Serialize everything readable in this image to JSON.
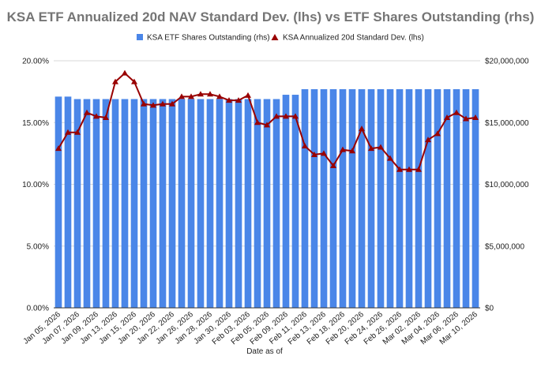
{
  "chart_data": {
    "type": "bar",
    "title": "KSA ETF Annualized 20d NAV Standard Dev. (lhs) vs ETF Shares Outstanding (rhs)",
    "xlabel": "Date as of",
    "ylabel": "",
    "ylabel_right": "",
    "categories": [
      "Jan 05, 2026",
      "Jan 06, 2026",
      "Jan 07, 2026",
      "Jan 08, 2026",
      "Jan 09, 2026",
      "Jan 12, 2026",
      "Jan 13, 2026",
      "Jan 14, 2026",
      "Jan 15, 2026",
      "Jan 16, 2026",
      "Jan 20, 2026",
      "Jan 21, 2026",
      "Jan 22, 2026",
      "Jan 23, 2026",
      "Jan 26, 2026",
      "Jan 27, 2026",
      "Jan 28, 2026",
      "Jan 29, 2026",
      "Jan 30, 2026",
      "Feb 02, 2026",
      "Feb 03, 2026",
      "Feb 04, 2026",
      "Feb 05, 2026",
      "Feb 06, 2026",
      "Feb 09, 2026",
      "Feb 10, 2026",
      "Feb 11, 2026",
      "Feb 12, 2026",
      "Feb 13, 2026",
      "Feb 17, 2026",
      "Feb 18, 2026",
      "Feb 19, 2026",
      "Feb 20, 2026",
      "Feb 23, 2026",
      "Feb 24, 2026",
      "Feb 25, 2026",
      "Feb 26, 2026",
      "Feb 27, 2026",
      "Mar 02, 2026",
      "Mar 03, 2026",
      "Mar 04, 2026",
      "Mar 05, 2026",
      "Mar 06, 2026",
      "Mar 09, 2026",
      "Mar 10, 2026"
    ],
    "x_tick_labels": [
      "Jan 05, 2026",
      "Jan 07, 2026",
      "Jan 09, 2026",
      "Jan 13, 2026",
      "Jan 15, 2026",
      "Jan 20, 2026",
      "Jan 22, 2026",
      "Jan 26, 2026",
      "Jan 28, 2026",
      "Jan 30, 2026",
      "Feb 03, 2026",
      "Feb 05, 2026",
      "Feb 09, 2026",
      "Feb 11, 2026",
      "Feb 13, 2026",
      "Feb 18, 2026",
      "Feb 20, 2026",
      "Feb 24, 2026",
      "Feb 26, 2026",
      "Mar 02, 2026",
      "Mar 04, 2026",
      "Mar 06, 2026",
      "Mar 10, 2026"
    ],
    "series": [
      {
        "name": "KSA ETF Shares Outstanding (rhs)",
        "type": "bar",
        "axis": "right",
        "color": "#4a86e8",
        "values": [
          17100000,
          17100000,
          16900000,
          16900000,
          16900000,
          16900000,
          16900000,
          16900000,
          16900000,
          16900000,
          16900000,
          16900000,
          16900000,
          16900000,
          16900000,
          16900000,
          16900000,
          16900000,
          16900000,
          16900000,
          16900000,
          16900000,
          16900000,
          16900000,
          17250000,
          17250000,
          17700000,
          17700000,
          17700000,
          17700000,
          17700000,
          17700000,
          17700000,
          17700000,
          17700000,
          17700000,
          17700000,
          17700000,
          17700000,
          17700000,
          17700000,
          17700000,
          17700000,
          17700000,
          17700000
        ]
      },
      {
        "name": "KSA Annualized 20d Standard Dev. (lhs)",
        "type": "line",
        "axis": "left",
        "color": "#990000",
        "marker": "triangle",
        "values": [
          0.129,
          0.142,
          0.142,
          0.158,
          0.155,
          0.154,
          0.183,
          0.19,
          0.183,
          0.165,
          0.164,
          0.165,
          0.165,
          0.171,
          0.171,
          0.173,
          0.173,
          0.171,
          0.168,
          0.168,
          0.172,
          0.15,
          0.148,
          0.155,
          0.155,
          0.155,
          0.131,
          0.124,
          0.125,
          0.115,
          0.128,
          0.127,
          0.145,
          0.129,
          0.13,
          0.121,
          0.112,
          0.112,
          0.112,
          0.136,
          0.141,
          0.154,
          0.158,
          0.153,
          0.154
        ]
      }
    ],
    "y_left": {
      "min": 0,
      "max": 0.2,
      "ticks": [
        0,
        0.05,
        0.1,
        0.15,
        0.2
      ],
      "tick_labels": [
        "0.00%",
        "5.00%",
        "10.00%",
        "15.00%",
        "20.00%"
      ]
    },
    "y_right": {
      "min": 0,
      "max": 20000000,
      "ticks": [
        0,
        5000000,
        10000000,
        15000000,
        20000000
      ],
      "tick_labels": [
        "$0",
        "$5,000,000",
        "$10,000,000",
        "$15,000,000",
        "$20,000,000"
      ]
    },
    "grid": true,
    "legend": "top-center"
  }
}
